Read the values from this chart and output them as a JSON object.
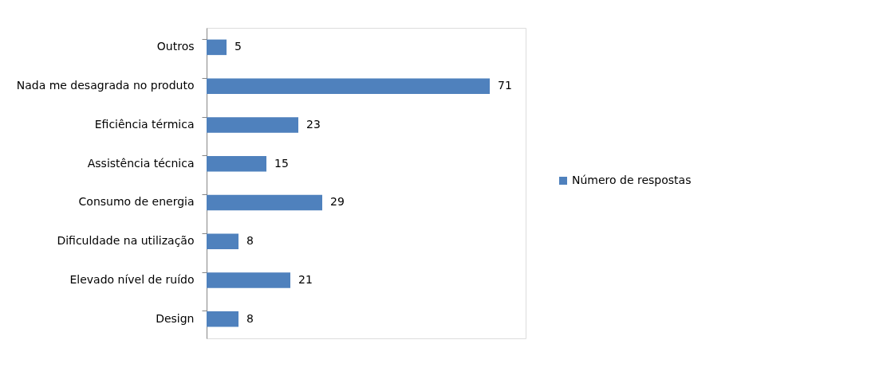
{
  "chart_data": {
    "type": "bar",
    "orientation": "horizontal",
    "categories": [
      "Outros",
      "Nada me desagrada no produto",
      "Eficiência térmica",
      "Assistência técnica",
      "Consumo de energia",
      "Dificuldade na utilização",
      "Elevado nível de ruído",
      "Design"
    ],
    "series": [
      {
        "name": "Número de respostas",
        "color": "#4f81bd",
        "values": [
          5,
          71,
          23,
          15,
          29,
          8,
          21,
          8
        ]
      }
    ],
    "data_labels": true,
    "legend": "right"
  }
}
